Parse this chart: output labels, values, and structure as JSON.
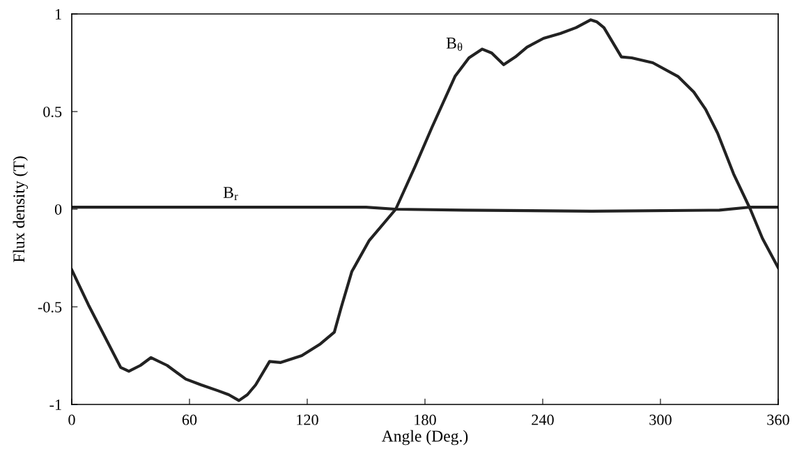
{
  "chart_data": {
    "type": "line",
    "xlabel": "Angle (Deg.)",
    "ylabel": "Flux density (T)",
    "xlim": [
      0,
      360
    ],
    "xticks": [
      0,
      60,
      120,
      180,
      240,
      300,
      360
    ],
    "ylim": [
      -1,
      1
    ],
    "yticks": [
      {
        "value": -1,
        "label": "-1"
      },
      {
        "value": -0.5,
        "label": "-0.5"
      },
      0,
      0.5,
      1
    ],
    "grid": false,
    "marker": "none",
    "line_style": "solid",
    "series": [
      {
        "color": "#222222",
        "x": [
          0,
          8.5,
          16.7,
          24.9,
          29.1,
          35,
          40.4,
          48.6,
          58.1,
          66,
          74.6,
          80,
          85.2,
          89.5,
          93.7,
          100.8,
          106.5,
          117.2,
          126.7,
          133.8,
          137.4,
          142.7,
          151.6,
          165.1,
          175,
          183.5,
          195.3,
          202.4,
          209.1,
          214,
          220.1,
          226.1,
          232,
          240.4,
          249,
          257,
          264.5,
          267.5,
          271.2,
          280.1,
          285.4,
          296.1,
          308.9,
          317,
          323.1,
          329.1,
          337.3,
          345.8,
          352,
          360
        ],
        "values": [
          -0.31,
          -0.49,
          -0.65,
          -0.81,
          -0.83,
          -0.8,
          -0.76,
          -0.8,
          -0.87,
          -0.9,
          -0.93,
          -0.95,
          -0.98,
          -0.95,
          -0.9,
          -0.78,
          -0.785,
          -0.75,
          -0.69,
          -0.63,
          -0.5,
          -0.32,
          -0.16,
          0,
          0.22,
          0.418,
          0.68,
          0.775,
          0.82,
          0.8,
          0.74,
          0.78,
          0.83,
          0.875,
          0.9,
          0.93,
          0.97,
          0.96,
          0.93,
          0.78,
          0.775,
          0.75,
          0.68,
          0.6,
          0.51,
          0.39,
          0.18,
          0,
          -0.15,
          -0.3
        ]
      },
      {
        "color": "#222222",
        "x": [
          0,
          60,
          120,
          150,
          165,
          200,
          265,
          330,
          345,
          360
        ],
        "values": [
          0.01,
          0.01,
          0.01,
          0.01,
          0,
          -0.005,
          -0.01,
          -0.005,
          0.01,
          0.01
        ]
      }
    ],
    "annotations": [
      {
        "text": "B$_{θ}$",
        "x": 202.4,
        "y": 0.775
      },
      {
        "text": "B$_{r}$",
        "x": 84,
        "y": 0.01
      }
    ]
  }
}
